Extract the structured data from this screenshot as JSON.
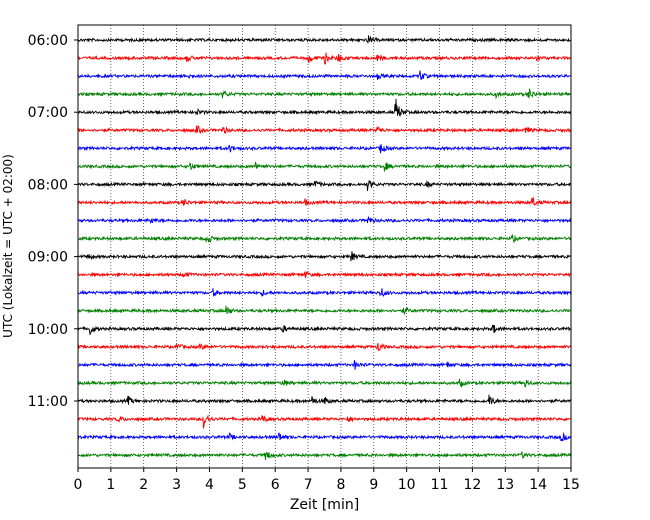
{
  "chart_data": {
    "type": "line",
    "title": "",
    "xlabel": "Zeit  [min]",
    "ylabel": "UTC (Lokalzeit = UTC + 02:00)",
    "xlim": [
      0,
      15
    ],
    "x_ticks": [
      "0",
      "1",
      "2",
      "3",
      "4",
      "5",
      "6",
      "7",
      "8",
      "9",
      "10",
      "11",
      "12",
      "13",
      "14",
      "15"
    ],
    "y_tick_labels": [
      "06:00",
      "07:00",
      "08:00",
      "09:00",
      "10:00",
      "11:00"
    ],
    "trace_interval_minutes": 15,
    "start_time": "06:00",
    "grid": "vertical-dotted",
    "series_colors": [
      "#000000",
      "#ff0000",
      "#0000ff",
      "#008000"
    ],
    "traces": [
      {
        "time": "06:00",
        "color": "#000000",
        "events": [
          {
            "t": 8.8,
            "amp": 5
          }
        ]
      },
      {
        "time": "06:15",
        "color": "#ff0000",
        "events": [
          {
            "t": 7.0,
            "amp": 6
          },
          {
            "t": 7.5,
            "amp": 7
          },
          {
            "t": 7.9,
            "amp": 5
          },
          {
            "t": 3.3,
            "amp": 4
          },
          {
            "t": 9.1,
            "amp": 4
          },
          {
            "t": 13.9,
            "amp": 4
          }
        ]
      },
      {
        "time": "06:30",
        "color": "#0000ff",
        "events": [
          {
            "t": 10.4,
            "amp": 6
          },
          {
            "t": 3.3,
            "amp": 3
          },
          {
            "t": 9.1,
            "amp": 3
          }
        ]
      },
      {
        "time": "06:45",
        "color": "#008000",
        "events": [
          {
            "t": 13.7,
            "amp": 7
          },
          {
            "t": 4.4,
            "amp": 4
          },
          {
            "t": 12.7,
            "amp": 3
          }
        ]
      },
      {
        "time": "07:00",
        "color": "#000000",
        "events": [
          {
            "t": 9.65,
            "amp": 16
          },
          {
            "t": 3.6,
            "amp": 3
          }
        ]
      },
      {
        "time": "07:15",
        "color": "#ff0000",
        "events": [
          {
            "t": 3.6,
            "amp": 5
          },
          {
            "t": 4.4,
            "amp": 4
          },
          {
            "t": 9.1,
            "amp": 4
          },
          {
            "t": 13.6,
            "amp": 5
          }
        ]
      },
      {
        "time": "07:30",
        "color": "#0000ff",
        "events": [
          {
            "t": 9.2,
            "amp": 6
          },
          {
            "t": 4.6,
            "amp": 4
          }
        ]
      },
      {
        "time": "07:45",
        "color": "#008000",
        "events": [
          {
            "t": 9.3,
            "amp": 6
          },
          {
            "t": 3.4,
            "amp": 4
          },
          {
            "t": 5.4,
            "amp": 3
          }
        ]
      },
      {
        "time": "08:00",
        "color": "#000000",
        "events": [
          {
            "t": 8.8,
            "amp": 6
          },
          {
            "t": 7.2,
            "amp": 4
          },
          {
            "t": 10.6,
            "amp": 3
          }
        ]
      },
      {
        "time": "08:15",
        "color": "#ff0000",
        "events": [
          {
            "t": 13.8,
            "amp": 6
          },
          {
            "t": 3.2,
            "amp": 4
          },
          {
            "t": 6.9,
            "amp": 3
          }
        ]
      },
      {
        "time": "08:30",
        "color": "#0000ff",
        "events": [
          {
            "t": 8.8,
            "amp": 4
          },
          {
            "t": 2.2,
            "amp": 3
          }
        ]
      },
      {
        "time": "08:45",
        "color": "#008000",
        "events": [
          {
            "t": 3.9,
            "amp": 6
          },
          {
            "t": 13.2,
            "amp": 4
          }
        ]
      },
      {
        "time": "09:00",
        "color": "#000000",
        "events": [
          {
            "t": 8.3,
            "amp": 6
          },
          {
            "t": 0.3,
            "amp": 3
          }
        ]
      },
      {
        "time": "09:15",
        "color": "#ff0000",
        "events": [
          {
            "t": 3.2,
            "amp": 3
          },
          {
            "t": 6.9,
            "amp": 3
          }
        ]
      },
      {
        "time": "09:30",
        "color": "#0000ff",
        "events": [
          {
            "t": 9.2,
            "amp": 6
          },
          {
            "t": 4.1,
            "amp": 4
          },
          {
            "t": 5.6,
            "amp": 3
          }
        ]
      },
      {
        "time": "09:45",
        "color": "#008000",
        "events": [
          {
            "t": 4.5,
            "amp": 6
          },
          {
            "t": 9.9,
            "amp": 4
          }
        ]
      },
      {
        "time": "10:00",
        "color": "#000000",
        "events": [
          {
            "t": 0.35,
            "amp": 7
          },
          {
            "t": 12.6,
            "amp": 6
          },
          {
            "t": 6.2,
            "amp": 4
          }
        ]
      },
      {
        "time": "10:15",
        "color": "#ff0000",
        "events": [
          {
            "t": 9.1,
            "amp": 7
          },
          {
            "t": 3.0,
            "amp": 4
          },
          {
            "t": 3.7,
            "amp": 3
          }
        ]
      },
      {
        "time": "10:30",
        "color": "#0000ff",
        "events": [
          {
            "t": 8.4,
            "amp": 5
          },
          {
            "t": 11.2,
            "amp": 3
          }
        ]
      },
      {
        "time": "10:45",
        "color": "#008000",
        "events": [
          {
            "t": 6.2,
            "amp": 5
          },
          {
            "t": 11.6,
            "amp": 4
          },
          {
            "t": 13.6,
            "amp": 4
          }
        ]
      },
      {
        "time": "11:00",
        "color": "#000000",
        "events": [
          {
            "t": 12.5,
            "amp": 7
          },
          {
            "t": 1.5,
            "amp": 5
          },
          {
            "t": 7.1,
            "amp": 5
          },
          {
            "t": 7.5,
            "amp": 4
          }
        ]
      },
      {
        "time": "11:15",
        "color": "#ff0000",
        "events": [
          {
            "t": 3.8,
            "amp": 12
          },
          {
            "t": 1.2,
            "amp": 4
          },
          {
            "t": 5.6,
            "amp": 4
          },
          {
            "t": 8.2,
            "amp": 3
          }
        ]
      },
      {
        "time": "11:30",
        "color": "#0000ff",
        "events": [
          {
            "t": 6.1,
            "amp": 5
          },
          {
            "t": 14.7,
            "amp": 5
          },
          {
            "t": 4.6,
            "amp": 3
          }
        ]
      },
      {
        "time": "11:45",
        "color": "#008000",
        "events": [
          {
            "t": 5.7,
            "amp": 6
          },
          {
            "t": 13.5,
            "amp": 3
          }
        ]
      }
    ]
  }
}
